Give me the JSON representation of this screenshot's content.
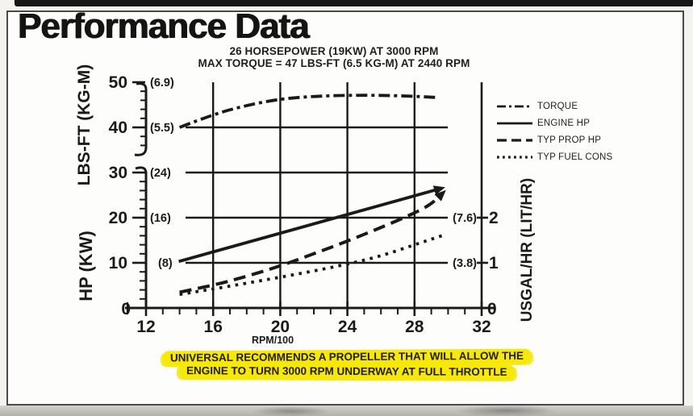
{
  "page": {
    "title": "Performance Data",
    "note_line1": "UNIVERSAL RECOMMENDS A PROPELLER THAT WILL ALLOW THE",
    "note_line2": "ENGINE TO TURN 3000 RPM UNDERWAY AT FULL THROTTLE",
    "highlight_color": "#f6e80a",
    "ink_color": "#1a1a1a",
    "paper_color": "#fdfdfb"
  },
  "chart_data": {
    "type": "line",
    "title": "26 HORSEPOWER (19KW) AT 3000 RPM",
    "subtitle": "MAX TORQUE = 47 LBS-FT (6.5 KG-M) AT 2440 RPM",
    "xlabel": "RPM/100",
    "xlim": [
      12,
      32
    ],
    "x_ticks": [
      12,
      16,
      20,
      24,
      28,
      32
    ],
    "ylabel_top": "LBS-FT (KG-M)",
    "ylabel_bottom": "HP (KW)",
    "ylabel_right": "USGAL/HR (LIT/HR)",
    "left_ticks": [
      {
        "label": "50",
        "paren": "(6.9)",
        "value": 50
      },
      {
        "label": "40",
        "paren": "(5.5)",
        "value": 40
      },
      {
        "label": "30",
        "paren": "(24)",
        "value": 30
      },
      {
        "label": "20",
        "paren": "(16)",
        "value": 20
      },
      {
        "label": "10",
        "paren": "(8)",
        "value": 10
      },
      {
        "label": "0",
        "value": 0
      }
    ],
    "right_ticks": [
      {
        "label": "2",
        "paren": "(7.6)",
        "value": 2
      },
      {
        "label": "1",
        "paren": "(3.8)",
        "value": 1
      },
      {
        "label": "0",
        "value": 0
      }
    ],
    "h_gridlines": [
      40,
      30,
      20,
      10
    ],
    "v_gridlines": [
      16,
      20,
      24,
      28
    ],
    "legend_position": "right",
    "series": [
      {
        "name": "TORQUE",
        "style": "dashdot",
        "y_axis": "lbs_ft",
        "x": [
          14,
          16,
          18,
          20,
          22,
          24,
          26,
          28,
          29.4
        ],
        "y": [
          40,
          42.9,
          44.9,
          46.3,
          46.9,
          47.1,
          47.1,
          46.9,
          46.6
        ]
      },
      {
        "name": "ENGINE HP",
        "style": "solid",
        "y_axis": "hp",
        "arrow": true,
        "x": [
          13.95,
          29.6
        ],
        "y": [
          10.3,
          26.5
        ]
      },
      {
        "name": "TYP PROP HP",
        "style": "dash",
        "y_axis": "hp",
        "arrow": true,
        "x": [
          14,
          16,
          18,
          20,
          22,
          24,
          26,
          28,
          29,
          29.7
        ],
        "y": [
          3.5,
          5,
          7,
          9.3,
          12,
          14.8,
          17.8,
          21,
          23,
          25.5
        ]
      },
      {
        "name": "TYP FUEL CONS",
        "style": "dot",
        "y_axis": "usgal_hr",
        "x": [
          14,
          16,
          18,
          20,
          22,
          24,
          26,
          28,
          29.8
        ],
        "y": [
          0.3,
          0.42,
          0.55,
          0.68,
          0.82,
          0.97,
          1.15,
          1.4,
          1.62
        ]
      }
    ]
  }
}
